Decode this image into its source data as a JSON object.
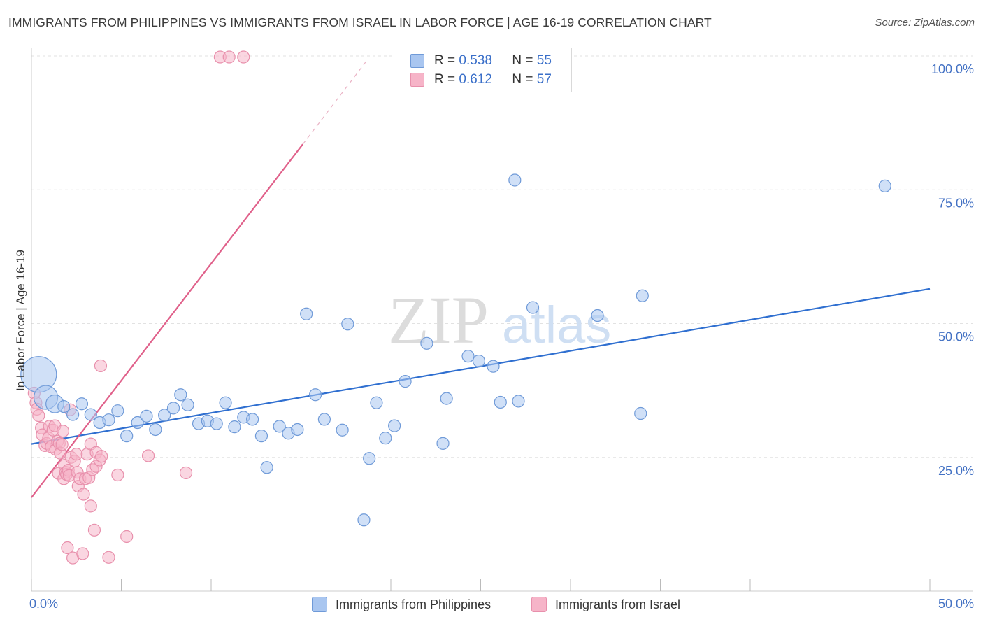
{
  "title": "IMMIGRANTS FROM PHILIPPINES VS IMMIGRANTS FROM ISRAEL IN LABOR FORCE | AGE 16-19 CORRELATION CHART",
  "source": "Source: ZipAtlas.com",
  "watermark": {
    "zip": "ZIP",
    "atlas": "atlas"
  },
  "legend": {
    "r_label": "R = ",
    "n_label": "N = ",
    "rows": [
      {
        "r": "0.538",
        "n": "55"
      },
      {
        "r": "0.612",
        "n": "57"
      }
    ]
  },
  "colors": {
    "blue_fill": "#a9c6f0",
    "blue_stroke": "#6f9ad8",
    "blue_line": "#2f6fd0",
    "pink_fill": "#f6b4c8",
    "pink_stroke": "#e890ac",
    "pink_line": "#e0608a",
    "axis_text": "#4472c4"
  },
  "chart_data": {
    "type": "scatter",
    "title": "IMMIGRANTS FROM PHILIPPINES VS IMMIGRANTS FROM ISRAEL IN LABOR FORCE | AGE 16-19 CORRELATION CHART",
    "xlabel": "",
    "ylabel": "In Labor Force | Age 16-19",
    "xlim": [
      0,
      50
    ],
    "ylim": [
      0,
      100
    ],
    "x_tick_labels": [
      "0.0%",
      "50.0%"
    ],
    "y_ticks": [
      25,
      50,
      75,
      100
    ],
    "y_tick_labels": [
      "25.0%",
      "50.0%",
      "75.0%",
      "100.0%"
    ],
    "grid": true,
    "series": [
      {
        "name": "Immigrants from Philippines",
        "r": 0.538,
        "n": 55,
        "trend": {
          "x0": 0,
          "y0": 27.5,
          "x1": 50,
          "y1": 56.5
        },
        "points": [
          [
            0.4,
            40.5,
            3
          ],
          [
            0.8,
            36.2,
            2
          ],
          [
            1.3,
            35.0,
            1.5
          ],
          [
            1.8,
            34.5,
            1
          ],
          [
            2.3,
            33.0,
            1
          ],
          [
            2.8,
            35.0,
            1
          ],
          [
            3.3,
            33.0,
            1
          ],
          [
            3.8,
            31.5,
            1
          ],
          [
            4.3,
            32.0,
            1
          ],
          [
            4.8,
            33.7,
            1
          ],
          [
            5.3,
            29.0,
            1
          ],
          [
            5.9,
            31.5,
            1
          ],
          [
            6.4,
            32.7,
            1
          ],
          [
            6.9,
            30.2,
            1
          ],
          [
            7.4,
            32.9,
            1
          ],
          [
            7.9,
            34.2,
            1
          ],
          [
            8.3,
            36.7,
            1
          ],
          [
            8.7,
            34.8,
            1
          ],
          [
            9.3,
            31.3,
            1
          ],
          [
            9.8,
            31.8,
            1
          ],
          [
            10.3,
            31.3,
            1
          ],
          [
            10.8,
            35.2,
            1
          ],
          [
            11.3,
            30.7,
            1
          ],
          [
            11.8,
            32.5,
            1
          ],
          [
            12.3,
            32.1,
            1
          ],
          [
            12.8,
            29.0,
            1
          ],
          [
            13.1,
            23.1,
            1
          ],
          [
            13.8,
            30.8,
            1
          ],
          [
            14.3,
            29.5,
            1
          ],
          [
            14.8,
            30.2,
            1
          ],
          [
            15.3,
            51.8,
            1
          ],
          [
            15.8,
            36.7,
            1
          ],
          [
            16.3,
            32.1,
            1
          ],
          [
            17.3,
            30.1,
            1
          ],
          [
            17.6,
            49.9,
            1
          ],
          [
            18.5,
            13.3,
            1
          ],
          [
            18.8,
            24.8,
            1
          ],
          [
            19.2,
            35.2,
            1
          ],
          [
            19.7,
            28.6,
            1
          ],
          [
            20.2,
            30.9,
            1
          ],
          [
            20.8,
            39.2,
            1
          ],
          [
            22.0,
            46.3,
            1
          ],
          [
            22.9,
            27.6,
            1
          ],
          [
            23.1,
            36.0,
            1
          ],
          [
            24.3,
            43.9,
            1
          ],
          [
            24.9,
            43.0,
            1
          ],
          [
            25.7,
            42.0,
            1
          ],
          [
            26.1,
            35.3,
            1
          ],
          [
            26.9,
            76.8,
            1
          ],
          [
            27.1,
            35.5,
            1
          ],
          [
            27.9,
            53.0,
            1
          ],
          [
            31.5,
            51.5,
            1
          ],
          [
            33.9,
            33.2,
            1
          ],
          [
            34.0,
            55.2,
            1
          ],
          [
            47.5,
            75.7,
            1
          ]
        ]
      },
      {
        "name": "Immigrants from Israel",
        "r": 0.612,
        "n": 57,
        "trend": {
          "x0": 0,
          "y0": 17.5,
          "x1": 15.1,
          "y1": 83.5
        },
        "trend_dashed": {
          "x0": 15.1,
          "y0": 83.5,
          "x1": 18.7,
          "y1": 99.3
        },
        "points": [
          [
            0.15,
            37.0,
            1
          ],
          [
            0.25,
            35.2,
            1
          ],
          [
            0.3,
            34.0,
            1
          ],
          [
            0.4,
            32.8,
            1
          ],
          [
            0.55,
            30.5,
            1
          ],
          [
            0.6,
            29.2,
            1
          ],
          [
            0.75,
            27.2,
            1
          ],
          [
            0.85,
            27.6,
            1
          ],
          [
            0.95,
            28.6,
            1
          ],
          [
            1.0,
            30.8,
            1
          ],
          [
            1.1,
            27.0,
            1
          ],
          [
            1.2,
            30.1,
            1
          ],
          [
            1.3,
            30.9,
            1
          ],
          [
            1.35,
            26.5,
            1
          ],
          [
            1.45,
            28.0,
            1
          ],
          [
            1.5,
            22.0,
            1
          ],
          [
            1.55,
            27.6,
            1
          ],
          [
            1.6,
            25.8,
            1
          ],
          [
            1.7,
            27.4,
            1
          ],
          [
            1.75,
            29.9,
            1
          ],
          [
            1.8,
            21.0,
            1
          ],
          [
            1.85,
            23.5,
            1
          ],
          [
            1.9,
            22.2,
            1
          ],
          [
            1.95,
            21.8,
            1
          ],
          [
            2.0,
            8.1,
            1
          ],
          [
            2.05,
            22.6,
            1
          ],
          [
            2.1,
            21.6,
            1
          ],
          [
            2.15,
            33.9,
            1
          ],
          [
            2.2,
            25.0,
            1
          ],
          [
            2.3,
            6.2,
            1
          ],
          [
            2.4,
            24.3,
            1
          ],
          [
            2.5,
            25.6,
            1
          ],
          [
            2.55,
            22.2,
            1
          ],
          [
            2.6,
            19.6,
            1
          ],
          [
            2.7,
            21.0,
            1
          ],
          [
            2.85,
            7.0,
            1
          ],
          [
            2.9,
            18.1,
            1
          ],
          [
            3.0,
            21.0,
            1
          ],
          [
            3.1,
            25.6,
            1
          ],
          [
            3.2,
            21.2,
            1
          ],
          [
            3.3,
            15.9,
            1
          ],
          [
            3.3,
            27.5,
            1
          ],
          [
            3.4,
            22.7,
            1
          ],
          [
            3.5,
            11.4,
            1
          ],
          [
            3.6,
            23.3,
            1
          ],
          [
            3.6,
            25.9,
            1
          ],
          [
            3.8,
            24.5,
            1
          ],
          [
            3.85,
            42.1,
            1
          ],
          [
            3.9,
            25.2,
            1
          ],
          [
            4.3,
            6.3,
            1
          ],
          [
            4.8,
            21.7,
            1
          ],
          [
            5.3,
            10.2,
            1
          ],
          [
            6.5,
            25.3,
            1
          ],
          [
            8.6,
            22.1,
            1
          ],
          [
            10.5,
            99.8,
            1
          ],
          [
            11.0,
            99.8,
            1
          ],
          [
            11.8,
            99.8,
            1
          ]
        ]
      }
    ]
  }
}
